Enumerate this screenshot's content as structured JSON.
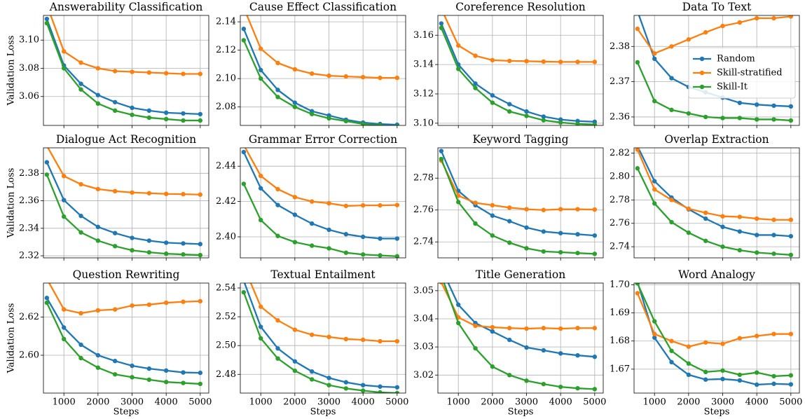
{
  "chart_data": [
    {
      "type": "line",
      "title": "Answerability Classification",
      "ylabel": "Validation Loss",
      "x": [
        500,
        1000,
        1500,
        2000,
        2500,
        3000,
        3500,
        4000,
        4500,
        5000
      ],
      "xlim": [
        400,
        5250
      ],
      "xticks": [
        1000,
        2000,
        3000,
        4000,
        5000
      ],
      "ylim": [
        3.0395,
        3.1175
      ],
      "yticks": [
        3.06,
        3.08,
        {
          "value": 3.1,
          "label": "3.10"
        }
      ],
      "grid": true,
      "series": [
        {
          "color": "#1f77b4",
          "values": [
            3.115,
            3.082,
            3.069,
            3.061,
            3.056,
            3.052,
            3.05,
            3.0485,
            3.048,
            3.0475
          ]
        },
        {
          "color": "#ff7f0e",
          "values": [
            3.125,
            3.092,
            3.084,
            3.08,
            3.078,
            3.0775,
            3.077,
            3.0765,
            3.076,
            3.076
          ]
        },
        {
          "color": "#2ca02c",
          "values": [
            3.112,
            3.08,
            3.065,
            3.055,
            3.05,
            3.047,
            3.045,
            3.044,
            3.043,
            3.043
          ]
        }
      ]
    },
    {
      "type": "line",
      "title": "Cause Effect Classification",
      "x": [
        500,
        1000,
        1500,
        2000,
        2500,
        3000,
        3500,
        4000,
        4500,
        5000
      ],
      "xlim": [
        400,
        5250
      ],
      "xticks": [
        1000,
        2000,
        3000,
        4000,
        5000
      ],
      "ylim": [
        2.067,
        2.1445
      ],
      "yticks": [
        2.08,
        {
          "value": 2.1,
          "label": "2.10"
        },
        2.12,
        2.14
      ],
      "grid": true,
      "series": [
        {
          "color": "#1f77b4",
          "values": [
            2.135,
            2.106,
            2.092,
            2.083,
            2.077,
            2.074,
            2.071,
            2.069,
            2.068,
            2.0675
          ]
        },
        {
          "color": "#ff7f0e",
          "values": [
            2.15,
            2.121,
            2.111,
            2.1065,
            2.1035,
            2.102,
            2.1015,
            2.101,
            2.1005,
            2.1005
          ]
        },
        {
          "color": "#2ca02c",
          "values": [
            2.127,
            2.1,
            2.087,
            2.08,
            2.075,
            2.072,
            2.07,
            2.068,
            2.067,
            2.0665
          ]
        }
      ]
    },
    {
      "type": "line",
      "title": "Coreference Resolution",
      "x": [
        500,
        1000,
        1500,
        2000,
        2500,
        3000,
        3500,
        4000,
        4500,
        5000
      ],
      "xlim": [
        400,
        5250
      ],
      "xticks": [
        1000,
        2000,
        3000,
        4000,
        5000
      ],
      "ylim": [
        3.0985,
        3.1735
      ],
      "yticks": [
        {
          "value": 3.1,
          "label": "3.10"
        },
        3.12,
        3.14,
        3.16
      ],
      "grid": true,
      "series": [
        {
          "color": "#1f77b4",
          "values": [
            3.168,
            3.14,
            3.127,
            3.119,
            3.113,
            3.108,
            3.1045,
            3.1025,
            3.1015,
            3.101
          ]
        },
        {
          "color": "#ff7f0e",
          "values": [
            3.178,
            3.153,
            3.146,
            3.143,
            3.1425,
            3.1423,
            3.142,
            3.1418,
            3.1418,
            3.1418
          ]
        },
        {
          "color": "#2ca02c",
          "values": [
            3.165,
            3.137,
            3.124,
            3.114,
            3.108,
            3.105,
            3.102,
            3.1005,
            3.0995,
            3.099
          ]
        }
      ]
    },
    {
      "type": "line",
      "title": "Data To Text",
      "x": [
        500,
        1000,
        1500,
        2000,
        2500,
        3000,
        3500,
        4000,
        4500,
        5000
      ],
      "xlim": [
        400,
        5250
      ],
      "xticks": [
        1000,
        2000,
        3000,
        4000,
        5000
      ],
      "ylim": [
        2.3576,
        2.3888
      ],
      "yticks": [
        2.36,
        2.37,
        2.38
      ],
      "grid": true,
      "legend": "upper right",
      "series": [
        {
          "name": "Random",
          "color": "#1f77b4",
          "values": [
            2.39,
            2.3765,
            2.371,
            2.3685,
            2.367,
            2.3655,
            2.364,
            2.3635,
            2.3632,
            2.363
          ]
        },
        {
          "name": "Skill-stratified",
          "color": "#ff7f0e",
          "values": [
            2.385,
            2.378,
            2.38,
            2.382,
            2.384,
            2.3858,
            2.3868,
            2.388,
            2.388,
            2.3885
          ]
        },
        {
          "name": "Skill-It",
          "color": "#2ca02c",
          "values": [
            2.3755,
            2.3645,
            2.362,
            2.361,
            2.36,
            2.3597,
            2.3597,
            2.3593,
            2.3593,
            2.359
          ]
        }
      ]
    },
    {
      "type": "line",
      "title": "Dialogue Act Recognition",
      "ylabel": "Validation Loss",
      "x": [
        500,
        1000,
        1500,
        2000,
        2500,
        3000,
        3500,
        4000,
        4500,
        5000
      ],
      "xlim": [
        400,
        5250
      ],
      "xticks": [
        1000,
        2000,
        3000,
        4000,
        5000
      ],
      "ylim": [
        2.3185,
        2.3985
      ],
      "yticks": [
        2.32,
        2.34,
        2.36,
        2.38
      ],
      "grid": true,
      "series": [
        {
          "color": "#1f77b4",
          "values": [
            2.388,
            2.3605,
            2.349,
            2.341,
            2.3365,
            2.333,
            2.331,
            2.3295,
            2.329,
            2.3285
          ]
        },
        {
          "color": "#ff7f0e",
          "values": [
            2.4,
            2.378,
            2.372,
            2.3685,
            2.367,
            2.366,
            2.3655,
            2.365,
            2.3648,
            2.3645
          ]
        },
        {
          "color": "#2ca02c",
          "values": [
            2.379,
            2.3485,
            2.337,
            2.331,
            2.327,
            2.324,
            2.3225,
            2.3215,
            2.321,
            2.3205
          ]
        }
      ]
    },
    {
      "type": "line",
      "title": "Grammar Error Correction",
      "x": [
        500,
        1000,
        1500,
        2000,
        2500,
        3000,
        3500,
        4000,
        4500,
        5000
      ],
      "xlim": [
        400,
        5250
      ],
      "xticks": [
        1000,
        2000,
        3000,
        4000,
        5000
      ],
      "ylim": [
        2.3881,
        2.4504
      ],
      "yticks": [
        {
          "value": 2.4,
          "label": "2.40"
        },
        2.42,
        2.44
      ],
      "grid": true,
      "series": [
        {
          "color": "#1f77b4",
          "values": [
            2.448,
            2.4275,
            2.418,
            2.4125,
            2.4075,
            2.404,
            2.4015,
            2.4,
            2.399,
            2.399
          ]
        },
        {
          "color": "#ff7f0e",
          "values": [
            2.452,
            2.4345,
            2.427,
            2.4225,
            2.42,
            2.419,
            2.4175,
            2.4178,
            2.4178,
            2.418
          ]
        },
        {
          "color": "#2ca02c",
          "values": [
            2.43,
            2.4095,
            2.4005,
            2.397,
            2.395,
            2.3935,
            2.391,
            2.39,
            2.3895,
            2.389
          ]
        }
      ]
    },
    {
      "type": "line",
      "title": "Keyword Tagging",
      "x": [
        500,
        1000,
        1500,
        2000,
        2500,
        3000,
        3500,
        4000,
        4500,
        5000
      ],
      "xlim": [
        400,
        5250
      ],
      "xticks": [
        1000,
        2000,
        3000,
        4000,
        5000
      ],
      "ylim": [
        2.73,
        2.799
      ],
      "yticks": [
        2.74,
        2.76,
        2.78
      ],
      "grid": true,
      "series": [
        {
          "color": "#1f77b4",
          "values": [
            2.797,
            2.772,
            2.763,
            2.7565,
            2.753,
            2.749,
            2.7465,
            2.7455,
            2.7448,
            2.744
          ]
        },
        {
          "color": "#ff7f0e",
          "values": [
            2.791,
            2.769,
            2.7645,
            2.763,
            2.7615,
            2.7605,
            2.76,
            2.7605,
            2.7605,
            2.7603
          ]
        },
        {
          "color": "#2ca02c",
          "values": [
            2.792,
            2.765,
            2.7515,
            2.744,
            2.7395,
            2.736,
            2.734,
            2.7335,
            2.733,
            2.7325
          ]
        }
      ]
    },
    {
      "type": "line",
      "title": "Overlap Extraction",
      "x": [
        500,
        1000,
        1500,
        2000,
        2500,
        3000,
        3500,
        4000,
        4500,
        5000
      ],
      "xlim": [
        400,
        5250
      ],
      "xticks": [
        1000,
        2000,
        3000,
        4000,
        5000
      ],
      "ylim": [
        2.7305,
        2.8245
      ],
      "yticks": [
        2.74,
        2.76,
        2.78,
        {
          "value": 2.8,
          "label": "2.80"
        },
        2.82
      ],
      "grid": true,
      "series": [
        {
          "color": "#1f77b4",
          "values": [
            2.826,
            2.796,
            2.782,
            2.772,
            2.764,
            2.757,
            2.753,
            2.75,
            2.75,
            2.749
          ]
        },
        {
          "color": "#ff7f0e",
          "values": [
            2.823,
            2.789,
            2.78,
            2.7725,
            2.769,
            2.766,
            2.7655,
            2.764,
            2.763,
            2.763
          ]
        },
        {
          "color": "#2ca02c",
          "values": [
            2.807,
            2.777,
            2.761,
            2.752,
            2.745,
            2.74,
            2.737,
            2.735,
            2.734,
            2.733
          ]
        }
      ]
    },
    {
      "type": "line",
      "title": "Question Rewriting",
      "ylabel": "Validation Loss",
      "xlabel": "Steps",
      "x": [
        500,
        1000,
        1500,
        2000,
        2500,
        3000,
        3500,
        4000,
        4500,
        5000
      ],
      "xlim": [
        400,
        5250
      ],
      "xticks": [
        1000,
        2000,
        3000,
        4000,
        5000
      ],
      "ylim": [
        2.5802,
        2.6378
      ],
      "yticks": [
        {
          "value": 2.6,
          "label": "2.60"
        },
        2.62
      ],
      "grid": true,
      "series": [
        {
          "color": "#1f77b4",
          "values": [
            2.63,
            2.6145,
            2.6055,
            2.6,
            2.597,
            2.5945,
            2.593,
            2.592,
            2.591,
            2.5908
          ]
        },
        {
          "color": "#ff7f0e",
          "values": [
            2.64,
            2.624,
            2.622,
            2.6235,
            2.624,
            2.626,
            2.6265,
            2.6275,
            2.628,
            2.6283
          ]
        },
        {
          "color": "#2ca02c",
          "values": [
            2.6275,
            2.6085,
            2.5985,
            2.5935,
            2.59,
            2.5885,
            2.5872,
            2.586,
            2.5855,
            2.585
          ]
        }
      ]
    },
    {
      "type": "line",
      "title": "Textual Entailment",
      "xlabel": "Steps",
      "x": [
        500,
        1000,
        1500,
        2000,
        2500,
        3000,
        3500,
        4000,
        4500,
        5000
      ],
      "xlim": [
        400,
        5250
      ],
      "xticks": [
        1000,
        2000,
        3000,
        4000,
        5000
      ],
      "ylim": [
        2.467,
        2.5434
      ],
      "yticks": [
        2.48,
        {
          "value": 2.5,
          "label": "2.50"
        },
        2.52,
        2.54
      ],
      "grid": true,
      "series": [
        {
          "color": "#1f77b4",
          "values": [
            2.545,
            2.513,
            2.498,
            2.489,
            2.482,
            2.4775,
            2.4745,
            2.4725,
            2.4715,
            2.471
          ]
        },
        {
          "color": "#ff7f0e",
          "values": [
            2.555,
            2.527,
            2.5175,
            2.511,
            2.5075,
            2.506,
            2.5045,
            2.504,
            2.503,
            2.503
          ]
        },
        {
          "color": "#2ca02c",
          "values": [
            2.537,
            2.505,
            2.491,
            2.4825,
            2.4765,
            2.4725,
            2.4702,
            2.4687,
            2.4675,
            2.467
          ]
        }
      ]
    },
    {
      "type": "line",
      "title": "Title Generation",
      "xlabel": "Steps",
      "x": [
        500,
        1000,
        1500,
        2000,
        2500,
        3000,
        3500,
        4000,
        4500,
        5000
      ],
      "xlim": [
        400,
        5250
      ],
      "xticks": [
        1000,
        2000,
        3000,
        4000,
        5000
      ],
      "ylim": [
        3.0136,
        3.0527
      ],
      "yticks": [
        3.02,
        3.03,
        3.04,
        3.05
      ],
      "grid": true,
      "series": [
        {
          "color": "#1f77b4",
          "values": [
            3.058,
            3.045,
            3.0385,
            3.0355,
            3.0325,
            3.0298,
            3.0288,
            3.0277,
            3.027,
            3.0265
          ]
        },
        {
          "color": "#ff7f0e",
          "values": [
            3.053,
            3.0405,
            3.0375,
            3.037,
            3.0367,
            3.0365,
            3.0367,
            3.0365,
            3.0367,
            3.0367
          ]
        },
        {
          "color": "#2ca02c",
          "values": [
            3.0555,
            3.0385,
            3.0295,
            3.023,
            3.02,
            3.018,
            3.0168,
            3.0158,
            3.0153,
            3.015
          ]
        }
      ]
    },
    {
      "type": "line",
      "title": "Word Analogy",
      "xlabel": "Steps",
      "x": [
        500,
        1000,
        1500,
        2000,
        2500,
        3000,
        3500,
        4000,
        4500,
        5000
      ],
      "xlim": [
        400,
        5250
      ],
      "xticks": [
        1000,
        2000,
        3000,
        4000,
        5000
      ],
      "ylim": [
        1.6615,
        1.7006
      ],
      "yticks": [
        1.67,
        1.68,
        1.69,
        {
          "value": 1.7,
          "label": "1.70"
        }
      ],
      "grid": true,
      "series": [
        {
          "color": "#1f77b4",
          "values": [
            1.701,
            1.6812,
            1.6725,
            1.668,
            1.6663,
            1.6665,
            1.666,
            1.6645,
            1.6648,
            1.6646
          ]
        },
        {
          "color": "#ff7f0e",
          "values": [
            1.697,
            1.6825,
            1.68,
            1.678,
            1.6795,
            1.679,
            1.681,
            1.6818,
            1.6825,
            1.6825
          ]
        },
        {
          "color": "#2ca02c",
          "values": [
            1.7005,
            1.687,
            1.6765,
            1.672,
            1.669,
            1.6695,
            1.668,
            1.6688,
            1.6675,
            1.6678
          ]
        }
      ]
    }
  ]
}
